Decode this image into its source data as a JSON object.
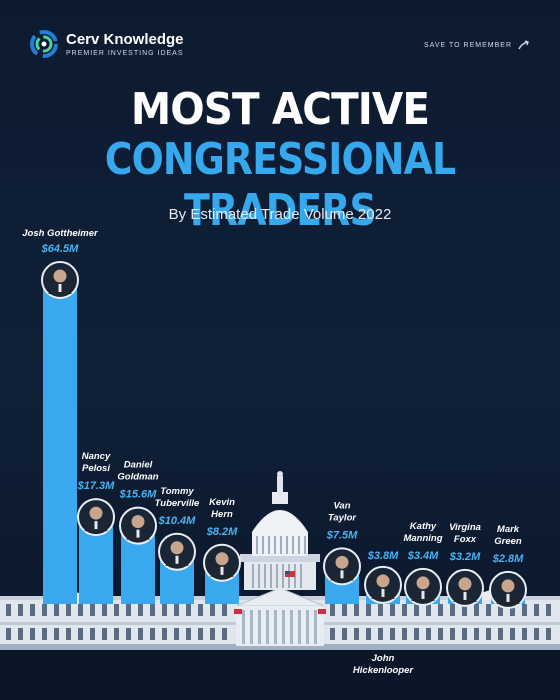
{
  "brand": {
    "name": "Cerv Knowledge",
    "tagline": "PREMIER INVESTING IDEAS"
  },
  "save_label": "SAVE TO REMEMBER",
  "colors": {
    "accent": "#36a9ee",
    "bar": "#3aa8ee",
    "background": "#0d1b30",
    "label": "#ffffff",
    "value": "#49b3f2"
  },
  "chart_data": {
    "type": "bar",
    "title": "MOST ACTIVE",
    "title_highlight": "CONGRESSIONAL TRADERS",
    "subtitle": "By Estimated Trade Volume 2022",
    "xlabel": "",
    "ylabel": "",
    "unit": "$M",
    "ylim": [
      0,
      64.5
    ],
    "grid": false,
    "categories": [
      [
        "Josh Gottheimer"
      ],
      [
        "Nancy",
        "Pelosi"
      ],
      [
        "Daniel",
        "Goldman"
      ],
      [
        "Tommy",
        "Tuberville"
      ],
      [
        "Kevin",
        "Hern"
      ],
      [
        "John",
        "Hickenlooper"
      ],
      [
        "Van",
        "Taylor"
      ],
      [
        "Kathy",
        "Manning"
      ],
      [
        "Virgina",
        "Foxx"
      ],
      [
        "Mark",
        "Green"
      ]
    ],
    "values": [
      64.5,
      17.3,
      15.6,
      10.4,
      8.2,
      3.8,
      7.5,
      3.4,
      3.2,
      2.8
    ],
    "value_labels": [
      "$64.5M",
      "$17.3M",
      "$15.6M",
      "$10.4M",
      "$8.2M",
      "$3.8M",
      "$7.5M",
      "$3.4M",
      "$3.2M",
      "$2.8M"
    ]
  }
}
